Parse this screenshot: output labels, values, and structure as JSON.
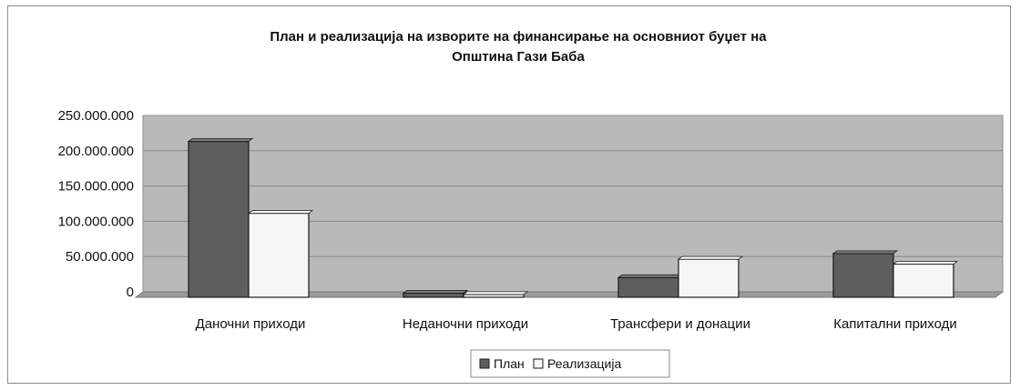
{
  "chart_data": {
    "type": "bar",
    "title_lines": [
      "План и реализација на изворите на финансирање на основниот буџет на",
      "Општина Гази Баба"
    ],
    "categories": [
      "Даночни приходи",
      "Неданочни приходи",
      "Трансфери и донации",
      "Капитални приходи"
    ],
    "series": [
      {
        "name": "План",
        "color": "#5e5e5e",
        "values": [
          221000000,
          6000000,
          28000000,
          62000000
        ]
      },
      {
        "name": "Реализација",
        "color": "#f6f6f6",
        "values": [
          119000000,
          4000000,
          54000000,
          47000000
        ]
      }
    ],
    "ylim": [
      0,
      250000000
    ],
    "yticks": [
      0,
      50000000,
      100000000,
      150000000,
      200000000,
      250000000
    ],
    "ytick_labels": [
      "0",
      "50.000.000",
      "100.000.000",
      "150.000.000",
      "200.000.000",
      "250.000.000"
    ],
    "plot_background": "#b9b9b9",
    "grid": true,
    "legend_position": "bottom"
  }
}
